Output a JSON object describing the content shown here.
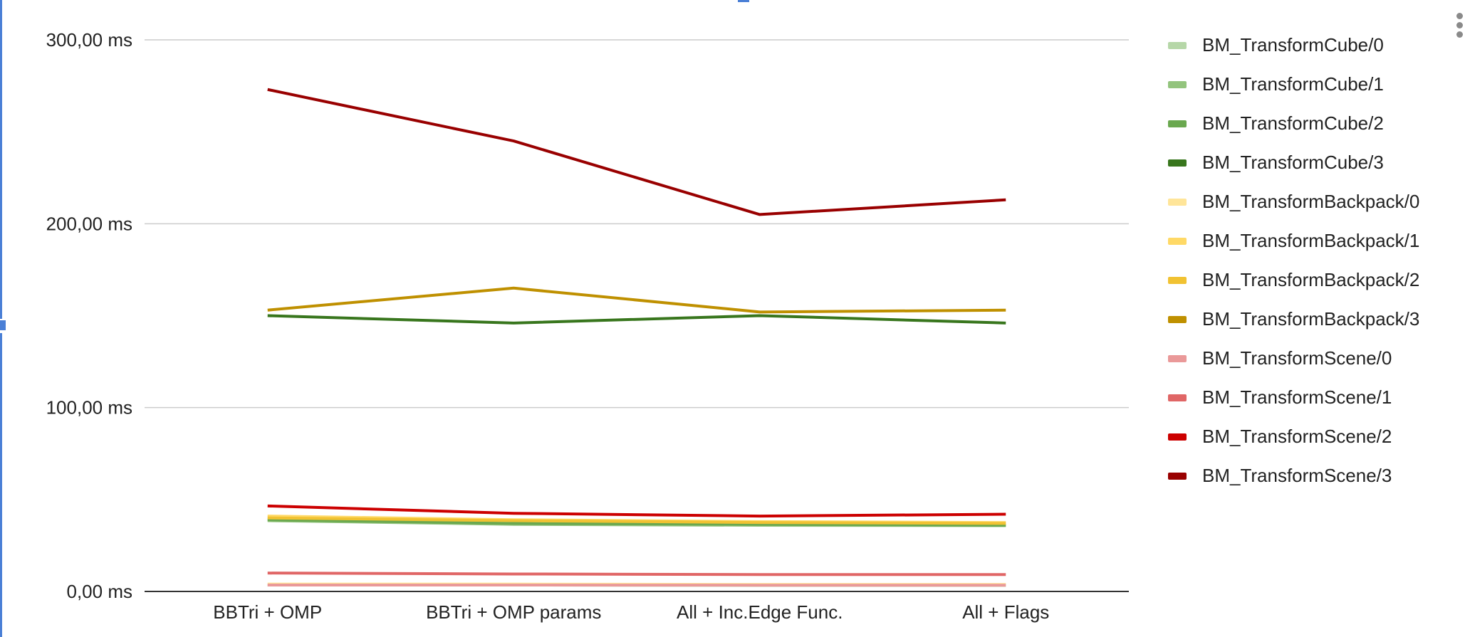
{
  "chart_data": {
    "type": "line",
    "categories": [
      "BBTri + OMP",
      "BBTri + OMP params",
      "All + Inc.Edge Func.",
      "All + Flags"
    ],
    "ylim": [
      0,
      300
    ],
    "yticks": [
      {
        "value": 0,
        "label": "0,00 ms"
      },
      {
        "value": 100,
        "label": "100,00 ms"
      },
      {
        "value": 200,
        "label": "200,00 ms"
      },
      {
        "value": 300,
        "label": "300,00 ms"
      }
    ],
    "legend_position": "right",
    "series": [
      {
        "name": "BM_TransformCube/0",
        "color": "#b6d7a8",
        "values": [
          3.5,
          3.5,
          3.3,
          3.3
        ]
      },
      {
        "name": "BM_TransformCube/1",
        "color": "#93c47d",
        "values": [
          38.5,
          36.5,
          36.0,
          35.8
        ]
      },
      {
        "name": "BM_TransformCube/2",
        "color": "#6aa84f",
        "values": [
          39.0,
          37.0,
          36.5,
          36.0
        ]
      },
      {
        "name": "BM_TransformCube/3",
        "color": "#38761d",
        "values": [
          150.0,
          146.0,
          150.0,
          146.0
        ]
      },
      {
        "name": "BM_TransformBackpack/0",
        "color": "#ffe599",
        "values": [
          4.0,
          4.0,
          3.8,
          3.8
        ]
      },
      {
        "name": "BM_TransformBackpack/1",
        "color": "#ffd966",
        "values": [
          41.0,
          39.0,
          38.0,
          37.5
        ]
      },
      {
        "name": "BM_TransformBackpack/2",
        "color": "#f1c232",
        "values": [
          40.0,
          38.5,
          37.5,
          37.0
        ]
      },
      {
        "name": "BM_TransformBackpack/3",
        "color": "#bf9000",
        "values": [
          153.0,
          165.0,
          152.0,
          153.0
        ]
      },
      {
        "name": "BM_TransformScene/0",
        "color": "#ea9999",
        "values": [
          3.5,
          3.5,
          3.4,
          3.4
        ]
      },
      {
        "name": "BM_TransformScene/1",
        "color": "#e06666",
        "values": [
          10.0,
          9.5,
          9.2,
          9.2
        ]
      },
      {
        "name": "BM_TransformScene/2",
        "color": "#cc0000",
        "values": [
          46.5,
          42.5,
          41.0,
          42.0
        ]
      },
      {
        "name": "BM_TransformScene/3",
        "color": "#990000",
        "values": [
          273.0,
          245.0,
          205.0,
          213.0
        ]
      }
    ]
  }
}
